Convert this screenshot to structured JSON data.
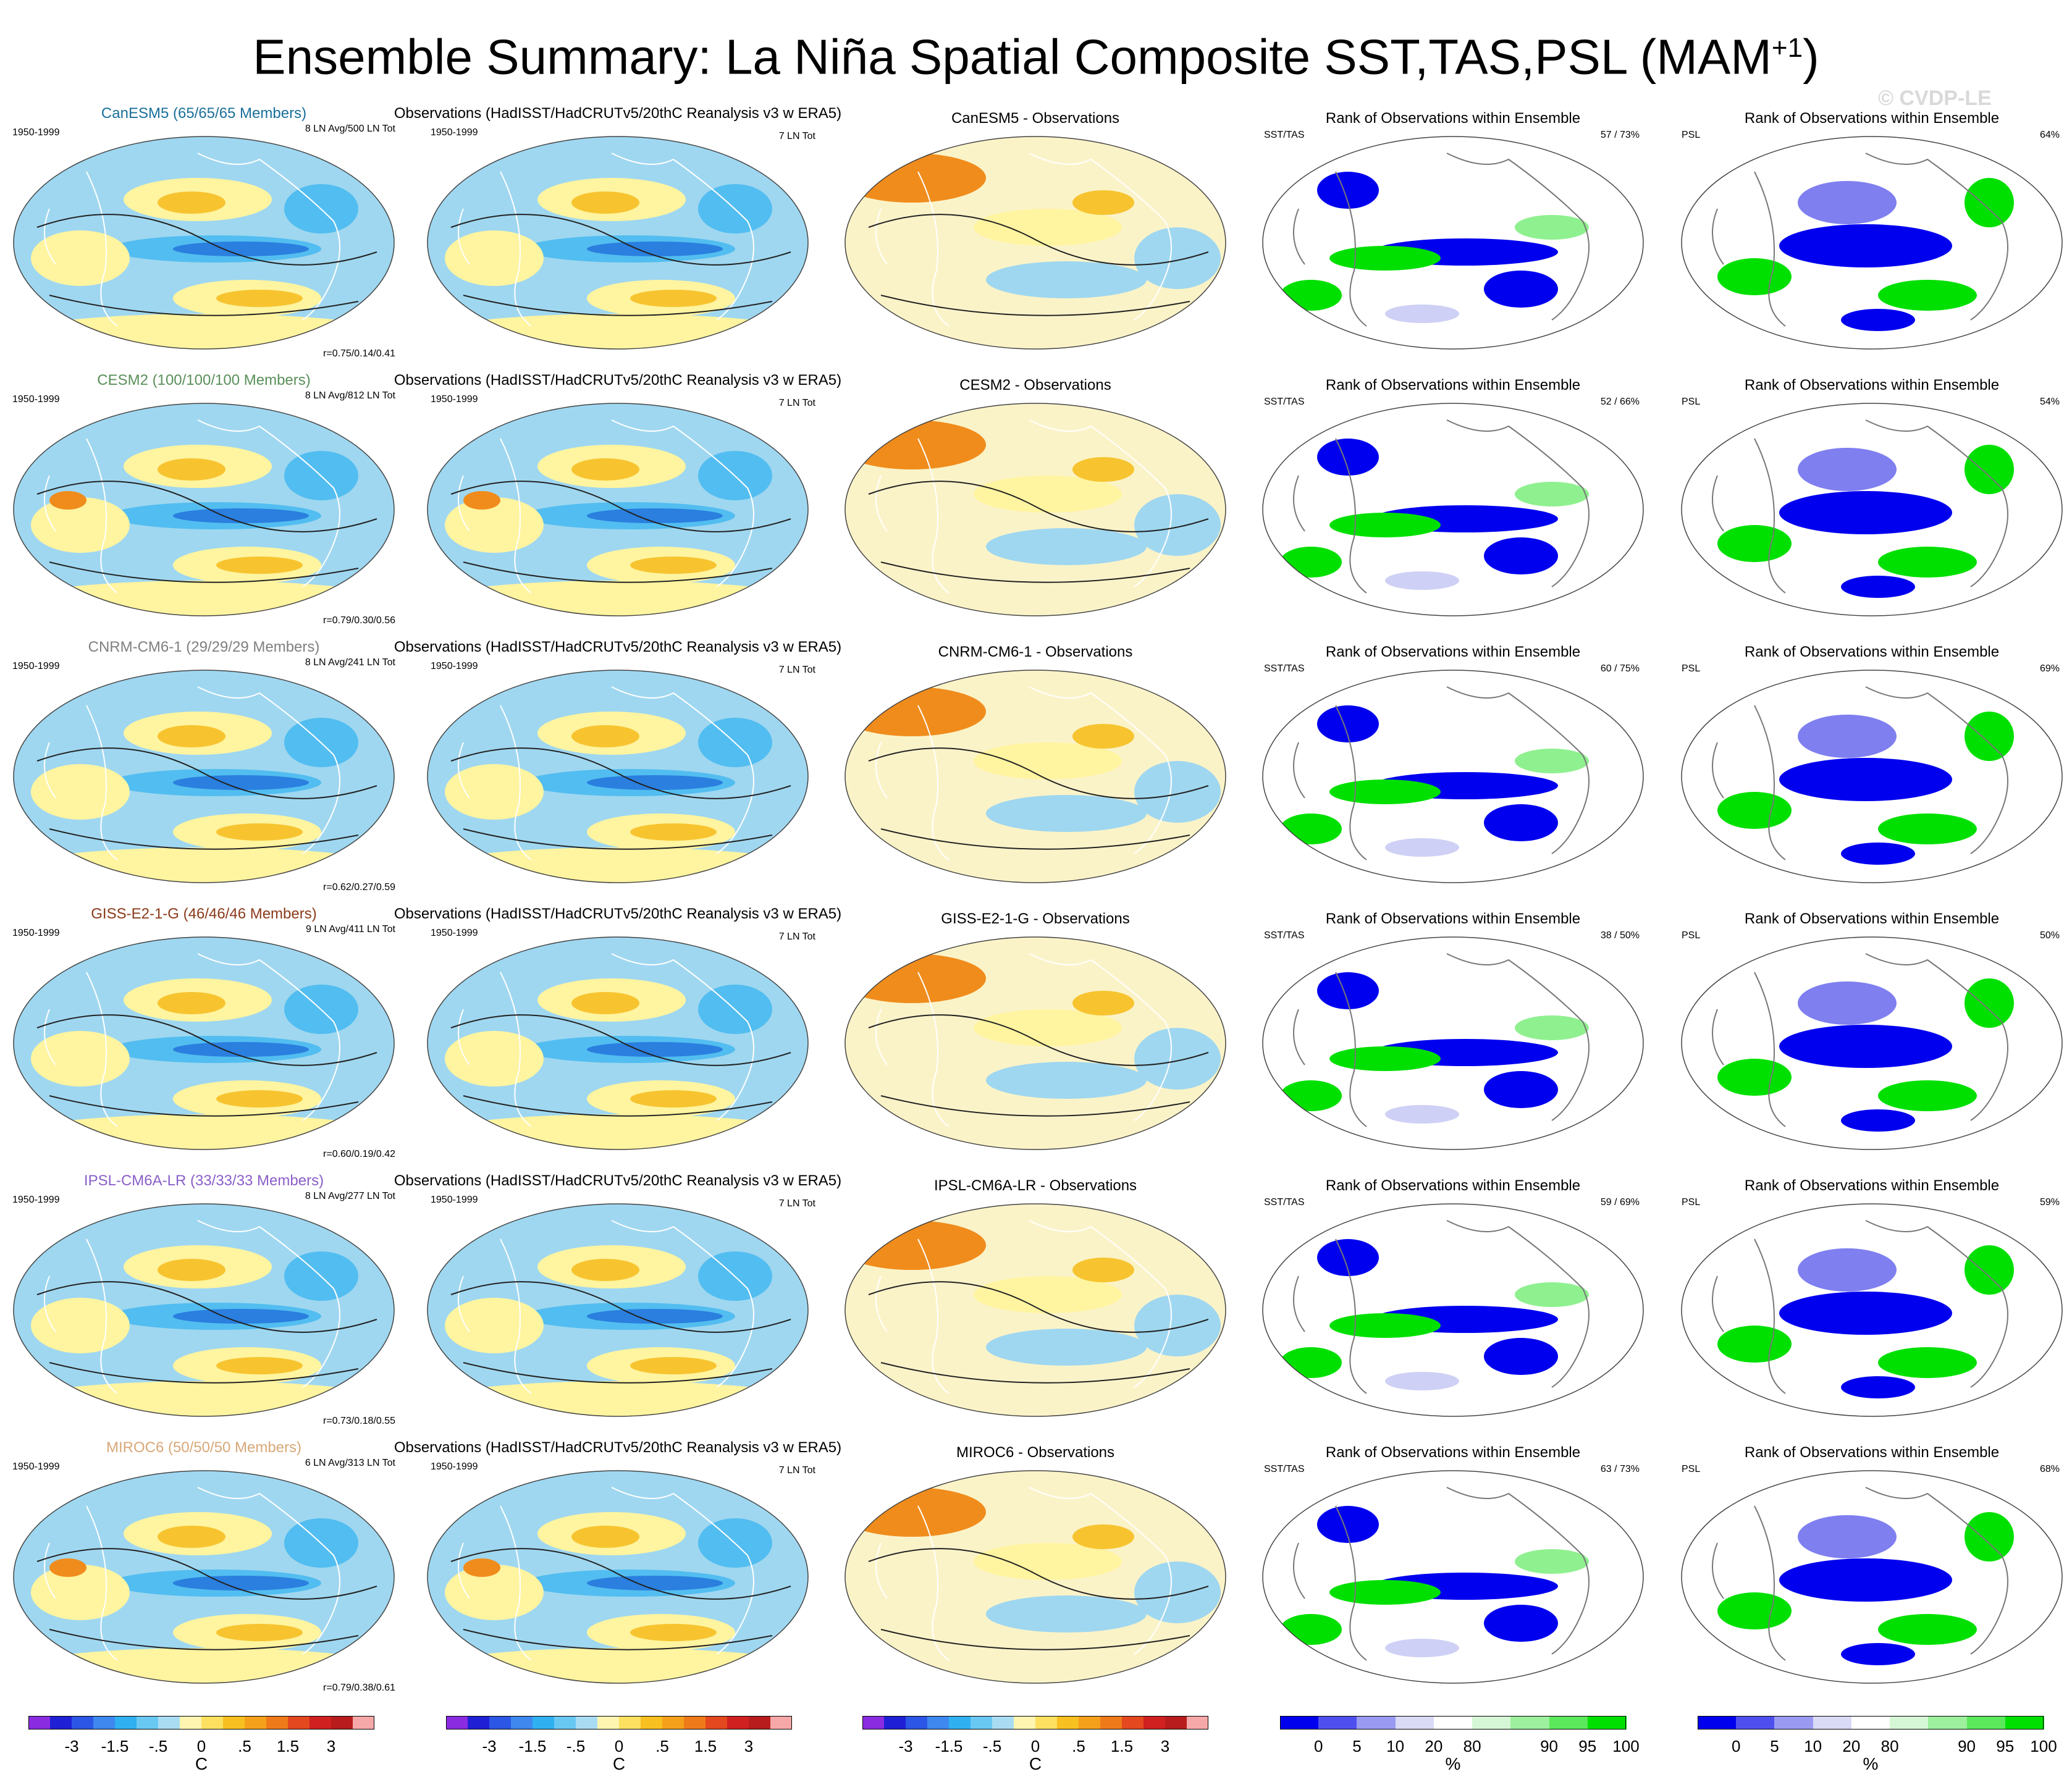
{
  "title": "Ensemble Summary: La Niña Spatial Composite SST,TAS,PSL (MAM",
  "title_sup": "+1",
  "title_close": ")",
  "watermark": "© CVDP-LE",
  "period": "1950-1999",
  "obs_title": "Observations (HadISST/HadCRUTv5/20thC Reanalysis v3 w ERA5)",
  "obs_count": "7 LN Tot",
  "rank_title": "Rank of Observations within Ensemble",
  "sst_label": "SST/TAS",
  "psl_label": "PSL",
  "colors": {
    "ocean_cool": "#9fd7f0",
    "ocean_cool2": "#52bdf0",
    "deep_cool": "#2a7fdf",
    "warm_light": "#fff4a0",
    "warm": "#f7c430",
    "warm_strong": "#f08c1c",
    "rank_low": "#0000ee",
    "rank_lowmid": "#7f7ff0",
    "rank_mid": "#cfd0f5",
    "rank_high": "#00e000",
    "rank_highmid": "#8ff08f",
    "rank_hi_light": "#d2f7d2"
  },
  "chart_data": {
    "type": "map-panel-grid",
    "season": "MAM+1",
    "models": [
      {
        "name": "CanESM5 (65/65/65 Members)",
        "color": "#1a6f9a",
        "counts": "8 LN Avg/500 LN Tot",
        "r": "r=0.75/0.14/0.41",
        "diff_title": "CanESM5 - Observations",
        "rank_sst": "57 /  73%",
        "rank_psl": "64%"
      },
      {
        "name": "CESM2 (100/100/100 Members)",
        "color": "#5a8f5a",
        "counts": "8 LN Avg/812 LN Tot",
        "r": "r=0.79/0.30/0.56",
        "diff_title": "CESM2 - Observations",
        "rank_sst": "52 /  66%",
        "rank_psl": "54%"
      },
      {
        "name": "CNRM-CM6-1 (29/29/29 Members)",
        "color": "#7f7f7f",
        "counts": "8 LN Avg/241 LN Tot",
        "r": "r=0.62/0.27/0.59",
        "diff_title": "CNRM-CM6-1 - Observations",
        "rank_sst": "60 /  75%",
        "rank_psl": "69%"
      },
      {
        "name": "GISS-E2-1-G (46/46/46 Members)",
        "color": "#8b3a1a",
        "counts": "9 LN Avg/411 LN Tot",
        "r": "r=0.60/0.19/0.42",
        "diff_title": "GISS-E2-1-G - Observations",
        "rank_sst": "38 /  50%",
        "rank_psl": "50%"
      },
      {
        "name": "IPSL-CM6A-LR (33/33/33 Members)",
        "color": "#8a5fc8",
        "counts": "8 LN Avg/277 LN Tot",
        "r": "r=0.73/0.18/0.55",
        "diff_title": "IPSL-CM6A-LR - Observations",
        "rank_sst": "59 /  69%",
        "rank_psl": "59%"
      },
      {
        "name": "MIROC6 (50/50/50 Members)",
        "color": "#d8a878",
        "counts": "6 LN Avg/313 LN Tot",
        "r": "r=0.79/0.38/0.61",
        "diff_title": "MIROC6 - Observations",
        "rank_sst": "63 /  73%",
        "rank_psl": "68%"
      }
    ],
    "temp_colorbar": {
      "unit": "C",
      "colors": [
        "#8a2be2",
        "#1f1fd6",
        "#2b56e6",
        "#3e88f0",
        "#2fb0f0",
        "#69c8f2",
        "#a9dcf3",
        "#fff5b0",
        "#fde060",
        "#f8c020",
        "#f5a01a",
        "#ef7a1a",
        "#e4481f",
        "#d02020",
        "#b81c1c",
        "#f6a8a8"
      ],
      "labels": [
        "-3",
        "-1.5",
        "-.5",
        "0",
        ".5",
        "1.5",
        "3"
      ]
    },
    "rank_colorbar": {
      "unit": "%",
      "colors": [
        "#0000ee",
        "#4f4ff0",
        "#9a9af2",
        "#d9daf6",
        "#ffffff",
        "#d6f7d6",
        "#9df09d",
        "#5be85b",
        "#00e000"
      ],
      "labels": [
        "0",
        "5",
        "10",
        "20",
        "80",
        "90",
        "95",
        "100"
      ]
    }
  }
}
